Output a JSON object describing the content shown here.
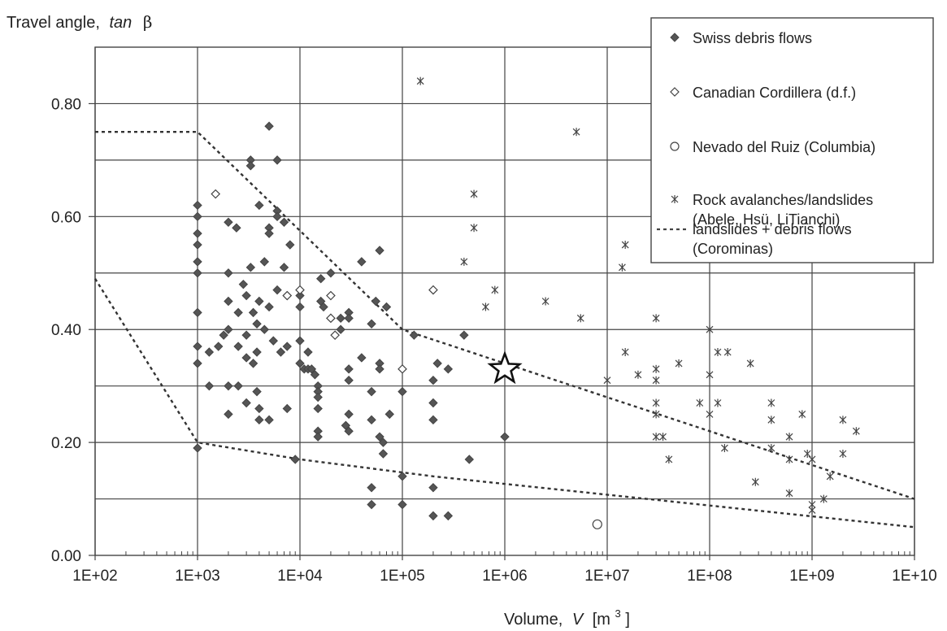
{
  "chart_data": {
    "type": "scatter",
    "ylabel": "Travel angle,",
    "ylabel_symbol": "tan",
    "ylabel_greek": "β",
    "xlabel": "Volume,",
    "xlabel_var": "V",
    "xlabel_unit_open": "[m",
    "xlabel_unit_exp": "3",
    "xlabel_unit_close": "]",
    "x_scale": "log",
    "xlim": [
      100,
      10000000000
    ],
    "ylim": [
      0,
      0.9
    ],
    "x_ticks": [
      "1E+02",
      "1E+03",
      "1E+04",
      "1E+05",
      "1E+06",
      "1E+07",
      "1E+08",
      "1E+09",
      "1E+10"
    ],
    "y_ticks": [
      "0.00",
      "0.20",
      "0.40",
      "0.60",
      "0.80"
    ],
    "grid": true,
    "legend_position": "top-right",
    "series": [
      {
        "name": "Swiss debris flows",
        "marker": "filled-diamond",
        "points": [
          [
            1000,
            0.62
          ],
          [
            1000,
            0.6
          ],
          [
            1000,
            0.57
          ],
          [
            1000,
            0.55
          ],
          [
            1000,
            0.52
          ],
          [
            1000,
            0.5
          ],
          [
            1000,
            0.43
          ],
          [
            1000,
            0.37
          ],
          [
            1000,
            0.34
          ],
          [
            1000,
            0.19
          ],
          [
            1300,
            0.36
          ],
          [
            1300,
            0.3
          ],
          [
            1600,
            0.37
          ],
          [
            1800,
            0.39
          ],
          [
            2000,
            0.59
          ],
          [
            2000,
            0.5
          ],
          [
            2000,
            0.45
          ],
          [
            2000,
            0.4
          ],
          [
            2000,
            0.3
          ],
          [
            2000,
            0.25
          ],
          [
            2400,
            0.58
          ],
          [
            2500,
            0.43
          ],
          [
            2500,
            0.37
          ],
          [
            2500,
            0.3
          ],
          [
            2800,
            0.48
          ],
          [
            3000,
            0.46
          ],
          [
            3000,
            0.39
          ],
          [
            3000,
            0.35
          ],
          [
            3000,
            0.27
          ],
          [
            3300,
            0.7
          ],
          [
            3300,
            0.69
          ],
          [
            3300,
            0.51
          ],
          [
            3500,
            0.43
          ],
          [
            3500,
            0.34
          ],
          [
            3800,
            0.41
          ],
          [
            3800,
            0.36
          ],
          [
            3800,
            0.29
          ],
          [
            4000,
            0.62
          ],
          [
            4000,
            0.45
          ],
          [
            4000,
            0.26
          ],
          [
            4000,
            0.24
          ],
          [
            4500,
            0.52
          ],
          [
            4500,
            0.4
          ],
          [
            5000,
            0.76
          ],
          [
            5000,
            0.58
          ],
          [
            5000,
            0.57
          ],
          [
            5000,
            0.44
          ],
          [
            5000,
            0.24
          ],
          [
            5500,
            0.38
          ],
          [
            6000,
            0.7
          ],
          [
            6000,
            0.61
          ],
          [
            6000,
            0.6
          ],
          [
            6000,
            0.47
          ],
          [
            6500,
            0.36
          ],
          [
            7000,
            0.51
          ],
          [
            7000,
            0.59
          ],
          [
            7500,
            0.46
          ],
          [
            7500,
            0.37
          ],
          [
            7500,
            0.26
          ],
          [
            8000,
            0.55
          ],
          [
            9000,
            0.17
          ],
          [
            10000,
            0.46
          ],
          [
            10000,
            0.44
          ],
          [
            10000,
            0.38
          ],
          [
            10000,
            0.34
          ],
          [
            11000,
            0.33
          ],
          [
            12000,
            0.33
          ],
          [
            12000,
            0.36
          ],
          [
            13000,
            0.33
          ],
          [
            14000,
            0.32
          ],
          [
            15000,
            0.3
          ],
          [
            15000,
            0.29
          ],
          [
            15000,
            0.28
          ],
          [
            15000,
            0.26
          ],
          [
            15000,
            0.22
          ],
          [
            15000,
            0.21
          ],
          [
            16000,
            0.49
          ],
          [
            16000,
            0.45
          ],
          [
            17000,
            0.44
          ],
          [
            20000,
            0.5
          ],
          [
            20000,
            0.42
          ],
          [
            25000,
            0.42
          ],
          [
            25000,
            0.4
          ],
          [
            28000,
            0.23
          ],
          [
            30000,
            0.43
          ],
          [
            30000,
            0.42
          ],
          [
            30000,
            0.33
          ],
          [
            30000,
            0.31
          ],
          [
            30000,
            0.25
          ],
          [
            30000,
            0.22
          ],
          [
            40000,
            0.52
          ],
          [
            40000,
            0.35
          ],
          [
            50000,
            0.41
          ],
          [
            50000,
            0.29
          ],
          [
            50000,
            0.24
          ],
          [
            50000,
            0.12
          ],
          [
            50000,
            0.09
          ],
          [
            55000,
            0.45
          ],
          [
            60000,
            0.54
          ],
          [
            60000,
            0.34
          ],
          [
            60000,
            0.33
          ],
          [
            60000,
            0.21
          ],
          [
            65000,
            0.2
          ],
          [
            65000,
            0.18
          ],
          [
            70000,
            0.44
          ],
          [
            75000,
            0.25
          ],
          [
            100000,
            0.29
          ],
          [
            100000,
            0.14
          ],
          [
            100000,
            0.09
          ],
          [
            130000,
            0.39
          ],
          [
            200000,
            0.31
          ],
          [
            200000,
            0.27
          ],
          [
            200000,
            0.24
          ],
          [
            200000,
            0.12
          ],
          [
            200000,
            0.07
          ],
          [
            220000,
            0.34
          ],
          [
            280000,
            0.33
          ],
          [
            280000,
            0.07
          ],
          [
            400000,
            0.39
          ],
          [
            450000,
            0.17
          ],
          [
            1000000,
            0.21
          ]
        ]
      },
      {
        "name": "Canadian Cordillera (d.f.)",
        "marker": "open-diamond",
        "points": [
          [
            1500,
            0.64
          ],
          [
            7500,
            0.46
          ],
          [
            10000,
            0.47
          ],
          [
            20000,
            0.42
          ],
          [
            20000,
            0.46
          ],
          [
            22000,
            0.39
          ],
          [
            100000,
            0.33
          ],
          [
            200000,
            0.47
          ]
        ]
      },
      {
        "name": "Nevado del Ruiz (Columbia)",
        "marker": "open-circle",
        "points": [
          [
            8000000,
            0.055
          ]
        ]
      },
      {
        "name": "Rock avalanches/landslides",
        "name_line2": "(Abele, Hsü, LiTianchi)",
        "marker": "asterisk",
        "points": [
          [
            150000,
            0.84
          ],
          [
            5000000,
            0.75
          ],
          [
            500000,
            0.64
          ],
          [
            500000,
            0.58
          ],
          [
            400000,
            0.52
          ],
          [
            800000,
            0.47
          ],
          [
            650000,
            0.44
          ],
          [
            2500000,
            0.45
          ],
          [
            5500000,
            0.42
          ],
          [
            15000000,
            0.55
          ],
          [
            14000000,
            0.51
          ],
          [
            15000000,
            0.36
          ],
          [
            10000000,
            0.31
          ],
          [
            20000000,
            0.32
          ],
          [
            30000000,
            0.42
          ],
          [
            30000000,
            0.33
          ],
          [
            30000000,
            0.31
          ],
          [
            30000000,
            0.27
          ],
          [
            30000000,
            0.25
          ],
          [
            30000000,
            0.21
          ],
          [
            35000000,
            0.21
          ],
          [
            40000000,
            0.17
          ],
          [
            50000000,
            0.34
          ],
          [
            80000000,
            0.27
          ],
          [
            100000000,
            0.4
          ],
          [
            100000000,
            0.32
          ],
          [
            100000000,
            0.25
          ],
          [
            120000000,
            0.36
          ],
          [
            120000000,
            0.27
          ],
          [
            150000000,
            0.36
          ],
          [
            140000000,
            0.19
          ],
          [
            250000000,
            0.34
          ],
          [
            280000000,
            0.13
          ],
          [
            400000000,
            0.27
          ],
          [
            400000000,
            0.24
          ],
          [
            400000000,
            0.19
          ],
          [
            600000000,
            0.21
          ],
          [
            600000000,
            0.17
          ],
          [
            600000000,
            0.11
          ],
          [
            800000000,
            0.25
          ],
          [
            900000000,
            0.18
          ],
          [
            1000000000,
            0.09
          ],
          [
            1000000000,
            0.08
          ],
          [
            1000000000,
            0.17
          ],
          [
            1500000000,
            0.14
          ],
          [
            1300000000,
            0.1
          ],
          [
            2000000000,
            0.24
          ],
          [
            2000000000,
            0.18
          ],
          [
            2700000000,
            0.22
          ]
        ]
      },
      {
        "name": "landslides + debris flows",
        "name_line2": "(Corominas)",
        "marker": "dashed-line",
        "lines": [
          [
            [
              100,
              0.75
            ],
            [
              1000,
              0.75
            ],
            [
              100000,
              0.4
            ],
            [
              10000000000,
              0.1
            ]
          ],
          [
            [
              100,
              0.49
            ],
            [
              1000,
              0.2
            ],
            [
              10000,
              0.17
            ],
            [
              200000,
              0.14
            ],
            [
              10000000000,
              0.05
            ]
          ]
        ]
      }
    ],
    "annotations": [
      {
        "marker": "star",
        "x": 1000000,
        "y": 0.33
      }
    ]
  }
}
